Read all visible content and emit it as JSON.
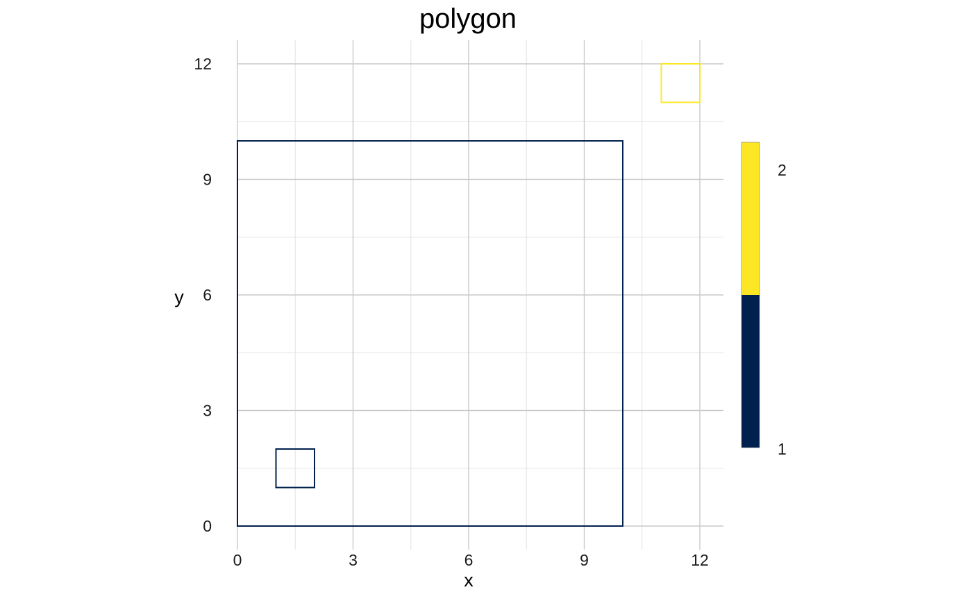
{
  "chart_data": {
    "type": "polygon",
    "title": "polygon",
    "xlabel": "x",
    "ylabel": "y",
    "xlim": [
      0,
      12
    ],
    "ylim": [
      0,
      12
    ],
    "x_ticks": [
      0,
      3,
      6,
      9,
      12
    ],
    "y_ticks": [
      0,
      3,
      6,
      9,
      12
    ],
    "grid": true,
    "polygons": [
      {
        "name": "polygon-1-outer",
        "value": 1,
        "coords": [
          [
            0,
            0
          ],
          [
            10,
            0
          ],
          [
            10,
            10
          ],
          [
            0,
            10
          ]
        ]
      },
      {
        "name": "polygon-1-inner",
        "value": 1,
        "coords": [
          [
            1,
            1
          ],
          [
            2,
            1
          ],
          [
            2,
            2
          ],
          [
            1,
            2
          ]
        ]
      },
      {
        "name": "polygon-2",
        "value": 2,
        "coords": [
          [
            11,
            11
          ],
          [
            12,
            11
          ],
          [
            12,
            12
          ],
          [
            11,
            12
          ]
        ]
      }
    ],
    "legend": {
      "placement": "right",
      "entries": [
        {
          "label": "2",
          "value": 2,
          "color": "#FDE725"
        },
        {
          "label": "1",
          "value": 1,
          "color": "#00204D"
        }
      ]
    },
    "colors": {
      "1": "#00204D",
      "2": "#FDE725"
    }
  }
}
